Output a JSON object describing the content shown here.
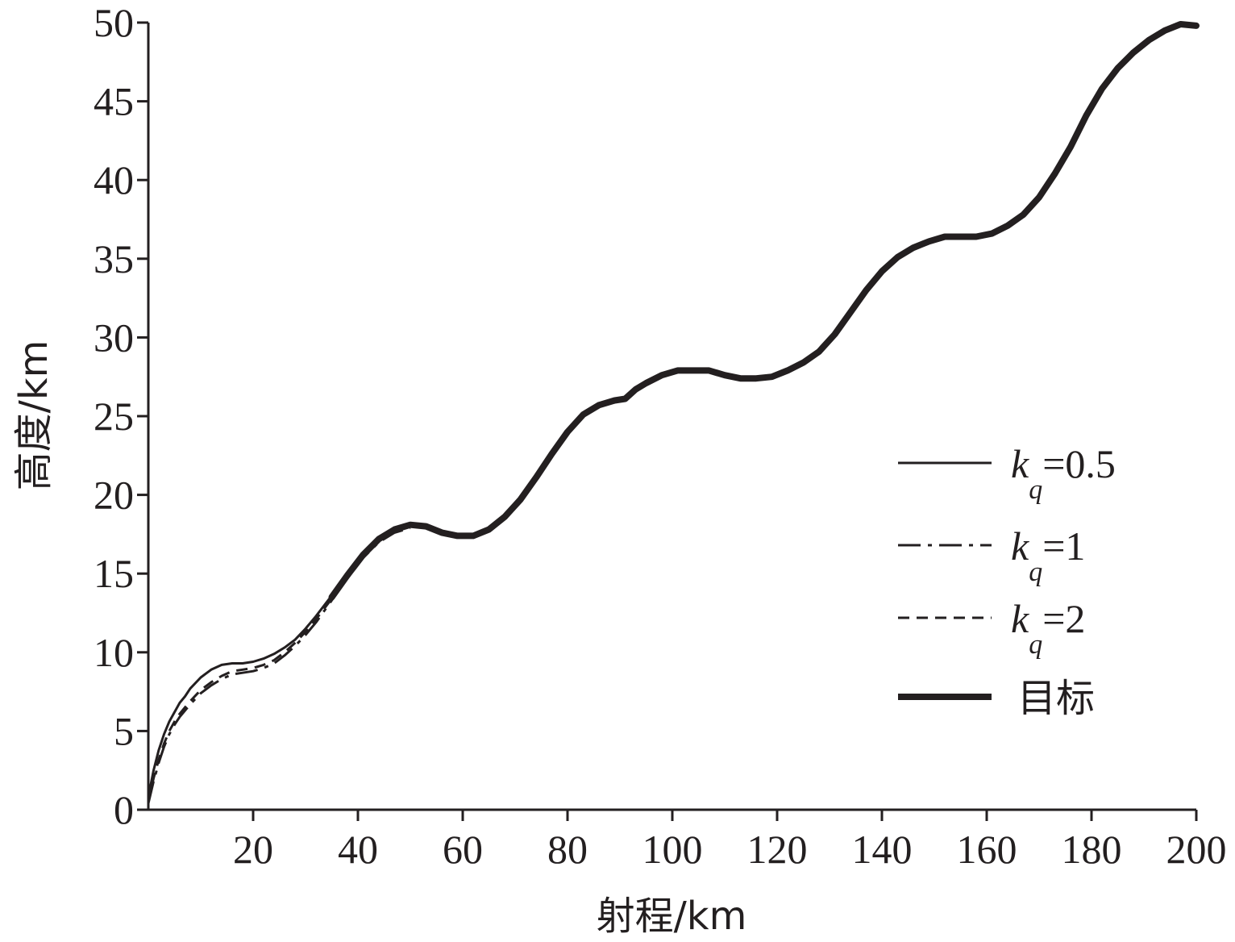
{
  "chart_data": {
    "type": "line",
    "title": "",
    "xlabel": "射程/km",
    "ylabel": "高度/km",
    "xlim": [
      0,
      200
    ],
    "ylim": [
      0,
      50
    ],
    "xticks": [
      20,
      40,
      60,
      80,
      100,
      120,
      140,
      160,
      180,
      200
    ],
    "yticks": [
      0,
      5,
      10,
      15,
      20,
      25,
      30,
      35,
      40,
      45,
      50
    ],
    "grid": false,
    "legend_position": "right",
    "series": [
      {
        "name": "k_q=0.5",
        "legend": {
          "k": "k",
          "sub": "q",
          "rest": "=0.5"
        },
        "style": "solid",
        "x": [
          0,
          1,
          2,
          3,
          4,
          5,
          6,
          7,
          8,
          10,
          12,
          14,
          16,
          18,
          20,
          22,
          24,
          26,
          28,
          30,
          32,
          35,
          38
        ],
        "y": [
          0.8,
          2.5,
          3.8,
          4.8,
          5.6,
          6.2,
          6.8,
          7.2,
          7.7,
          8.4,
          8.9,
          9.2,
          9.3,
          9.3,
          9.4,
          9.6,
          9.9,
          10.3,
          10.8,
          11.5,
          12.3,
          13.6,
          14.9
        ]
      },
      {
        "name": "k_q=1",
        "legend": {
          "k": "k",
          "sub": "q",
          "rest": "=1"
        },
        "style": "dashdot",
        "x": [
          0,
          1,
          2,
          3,
          4,
          5,
          6,
          7,
          8,
          10,
          12,
          14,
          16,
          18,
          20,
          22,
          24,
          26,
          28,
          30,
          32,
          35,
          38,
          41,
          44,
          47,
          50
        ],
        "y": [
          0.4,
          1.8,
          3.0,
          4.0,
          4.8,
          5.4,
          5.9,
          6.3,
          6.7,
          7.4,
          7.9,
          8.3,
          8.6,
          8.7,
          8.8,
          9.0,
          9.3,
          9.8,
          10.4,
          11.1,
          11.9,
          13.3,
          14.7,
          16.0,
          17.0,
          17.6,
          17.9
        ]
      },
      {
        "name": "k_q=2",
        "legend": {
          "k": "k",
          "sub": "q",
          "rest": "=2"
        },
        "style": "dashed",
        "x": [
          0,
          1,
          2,
          3,
          4,
          5,
          6,
          7,
          8,
          10,
          12,
          14,
          16,
          18,
          20,
          22,
          24,
          26,
          28,
          30,
          32,
          35,
          38,
          41,
          44,
          47,
          50
        ],
        "y": [
          0.5,
          2.0,
          3.2,
          4.2,
          5.0,
          5.6,
          6.1,
          6.5,
          6.9,
          7.6,
          8.1,
          8.5,
          8.8,
          8.9,
          9.0,
          9.2,
          9.5,
          10.0,
          10.6,
          11.3,
          12.1,
          13.4,
          14.8,
          16.1,
          17.1,
          17.7,
          18.0
        ]
      },
      {
        "name": "目标",
        "legend": {
          "text": "目标"
        },
        "style": "thick",
        "x": [
          35,
          38,
          41,
          44,
          47,
          50,
          53,
          56,
          59,
          62,
          65,
          68,
          71,
          74,
          77,
          80,
          83,
          86,
          89,
          91,
          93,
          95,
          98,
          101,
          104,
          107,
          110,
          113,
          116,
          119,
          122,
          125,
          128,
          131,
          134,
          137,
          140,
          143,
          146,
          149,
          152,
          155,
          158,
          161,
          164,
          167,
          170,
          173,
          176,
          179,
          182,
          185,
          188,
          191,
          194,
          197,
          200
        ],
        "y": [
          13.5,
          14.9,
          16.2,
          17.2,
          17.8,
          18.1,
          18.0,
          17.6,
          17.4,
          17.4,
          17.8,
          18.6,
          19.7,
          21.1,
          22.6,
          24.0,
          25.1,
          25.7,
          26.0,
          26.1,
          26.7,
          27.1,
          27.6,
          27.9,
          27.9,
          27.9,
          27.6,
          27.4,
          27.4,
          27.5,
          27.9,
          28.4,
          29.1,
          30.2,
          31.6,
          33.0,
          34.2,
          35.1,
          35.7,
          36.1,
          36.4,
          36.4,
          36.4,
          36.6,
          37.1,
          37.8,
          38.9,
          40.4,
          42.1,
          44.1,
          45.8,
          47.1,
          48.1,
          48.9,
          49.5,
          49.9,
          49.8
        ]
      }
    ]
  }
}
